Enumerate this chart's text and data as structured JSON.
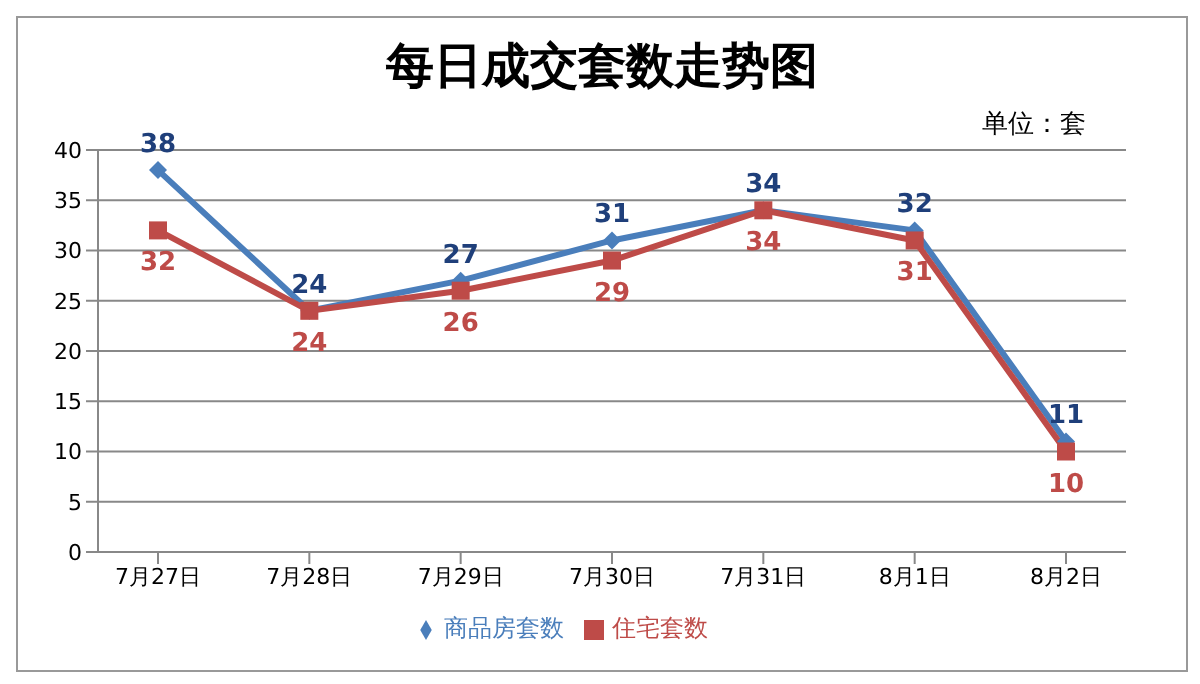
{
  "chart_data": {
    "type": "line",
    "title": "每日成交套数走势图",
    "annotations": [
      "单位：套"
    ],
    "categories": [
      "7月27日",
      "7月28日",
      "7月29日",
      "7月30日",
      "7月31日",
      "8月1日",
      "8月2日"
    ],
    "series": [
      {
        "name": "商品房套数",
        "color": "#4a7ebb",
        "values": [
          38,
          24,
          27,
          31,
          34,
          32,
          11
        ],
        "marker": "diamond"
      },
      {
        "name": "住宅套数",
        "color": "#be4b48",
        "values": [
          32,
          24,
          26,
          29,
          34,
          31,
          10
        ],
        "marker": "square"
      }
    ],
    "ylim": [
      0,
      40
    ],
    "yticks": [
      0,
      5,
      10,
      15,
      20,
      25,
      30,
      35,
      40
    ],
    "grid": "y",
    "legend": "bottom",
    "data_labels": true,
    "line_style": "solid"
  }
}
